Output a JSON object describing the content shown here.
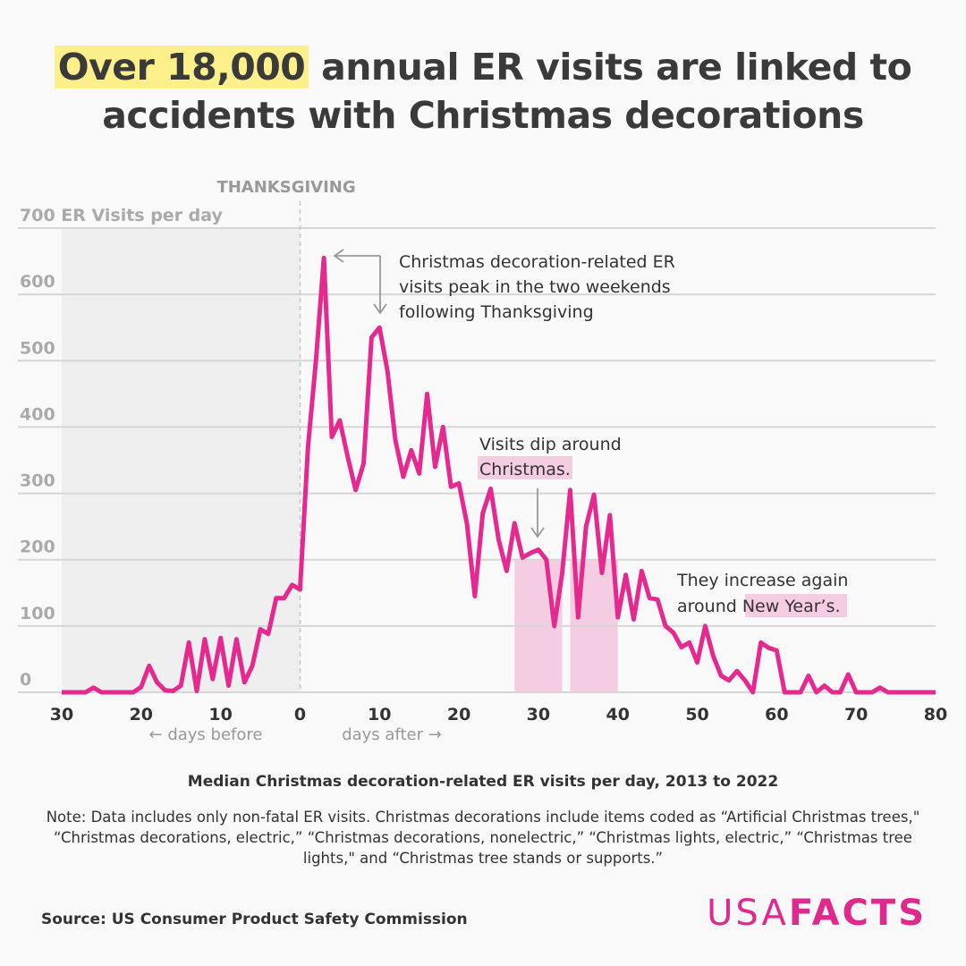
{
  "title": {
    "highlight": "Over 18,000",
    "rest_line1": " annual ER visits are linked to",
    "line2": "accidents with Christmas decorations"
  },
  "chart_data": {
    "type": "line",
    "ylabel": "ER Visits per day",
    "ylim": [
      0,
      700
    ],
    "xlim": [
      -30,
      80
    ],
    "yticks": [
      0,
      100,
      200,
      300,
      400,
      500,
      600,
      700
    ],
    "xticks": [
      -30,
      -20,
      -10,
      0,
      10,
      20,
      30,
      40,
      50,
      60,
      70,
      80
    ],
    "xtick_labels": [
      "30",
      "20",
      "10",
      "0",
      "10",
      "20",
      "30",
      "40",
      "50",
      "60",
      "70",
      "80"
    ],
    "x_before_label": "← days before",
    "x_after_label": "days after →",
    "grid": true,
    "line_color": "#e6298f",
    "vline_label": "THANKSGIVING",
    "shaded_before": [
      -30,
      0
    ],
    "highlight_bands": [
      [
        27,
        33
      ],
      [
        34,
        40
      ]
    ],
    "x_start": -30,
    "values": [
      0,
      0,
      0,
      0,
      7,
      0,
      0,
      0,
      0,
      0,
      8,
      40,
      15,
      3,
      2,
      10,
      75,
      2,
      80,
      20,
      82,
      10,
      80,
      15,
      40,
      95,
      88,
      142,
      142,
      162,
      155,
      370,
      500,
      655,
      385,
      410,
      355,
      305,
      345,
      535,
      550,
      485,
      380,
      325,
      365,
      330,
      450,
      340,
      400,
      310,
      315,
      255,
      145,
      270,
      307,
      230,
      183,
      255,
      203,
      210,
      215,
      200,
      100,
      180,
      305,
      113,
      250,
      298,
      180,
      267,
      113,
      177,
      110,
      183,
      142,
      140,
      100,
      90,
      68,
      75,
      45,
      100,
      55,
      25,
      18,
      32,
      18,
      0,
      75,
      67,
      63,
      0,
      0,
      0,
      25,
      0,
      10,
      0,
      0,
      27,
      0,
      0,
      0,
      7,
      0,
      0,
      0,
      0,
      0,
      0,
      0
    ],
    "annotations": [
      {
        "lines": [
          "Christmas decoration-related ER",
          "visits peak in the two weekends",
          "following Thanksgiving"
        ]
      },
      {
        "lines": [
          "Visits dip around",
          "Christmas."
        ]
      },
      {
        "lines": [
          "They increase again",
          "around New Year’s."
        ]
      }
    ]
  },
  "caption": "Median Christmas decoration-related ER visits per day, 2013 to 2022",
  "note": "Note: Data includes only non-fatal ER visits. Christmas decorations include items coded as “Artificial Christmas trees,\" “Christmas decorations, electric,” “Christmas decorations, nonelectric,” “Christmas lights, electric,” “Christmas tree lights,\" and “Christmas tree stands or supports.”",
  "source": "Source: US Consumer Product Safety Commission",
  "logo": {
    "light": "USA",
    "bold": "FACTS",
    "color": "#e0298c"
  },
  "colors": {
    "highlight_yellow": "#fdf08a",
    "band_pink": "#f4cde2",
    "shade_gray": "#efefef"
  }
}
